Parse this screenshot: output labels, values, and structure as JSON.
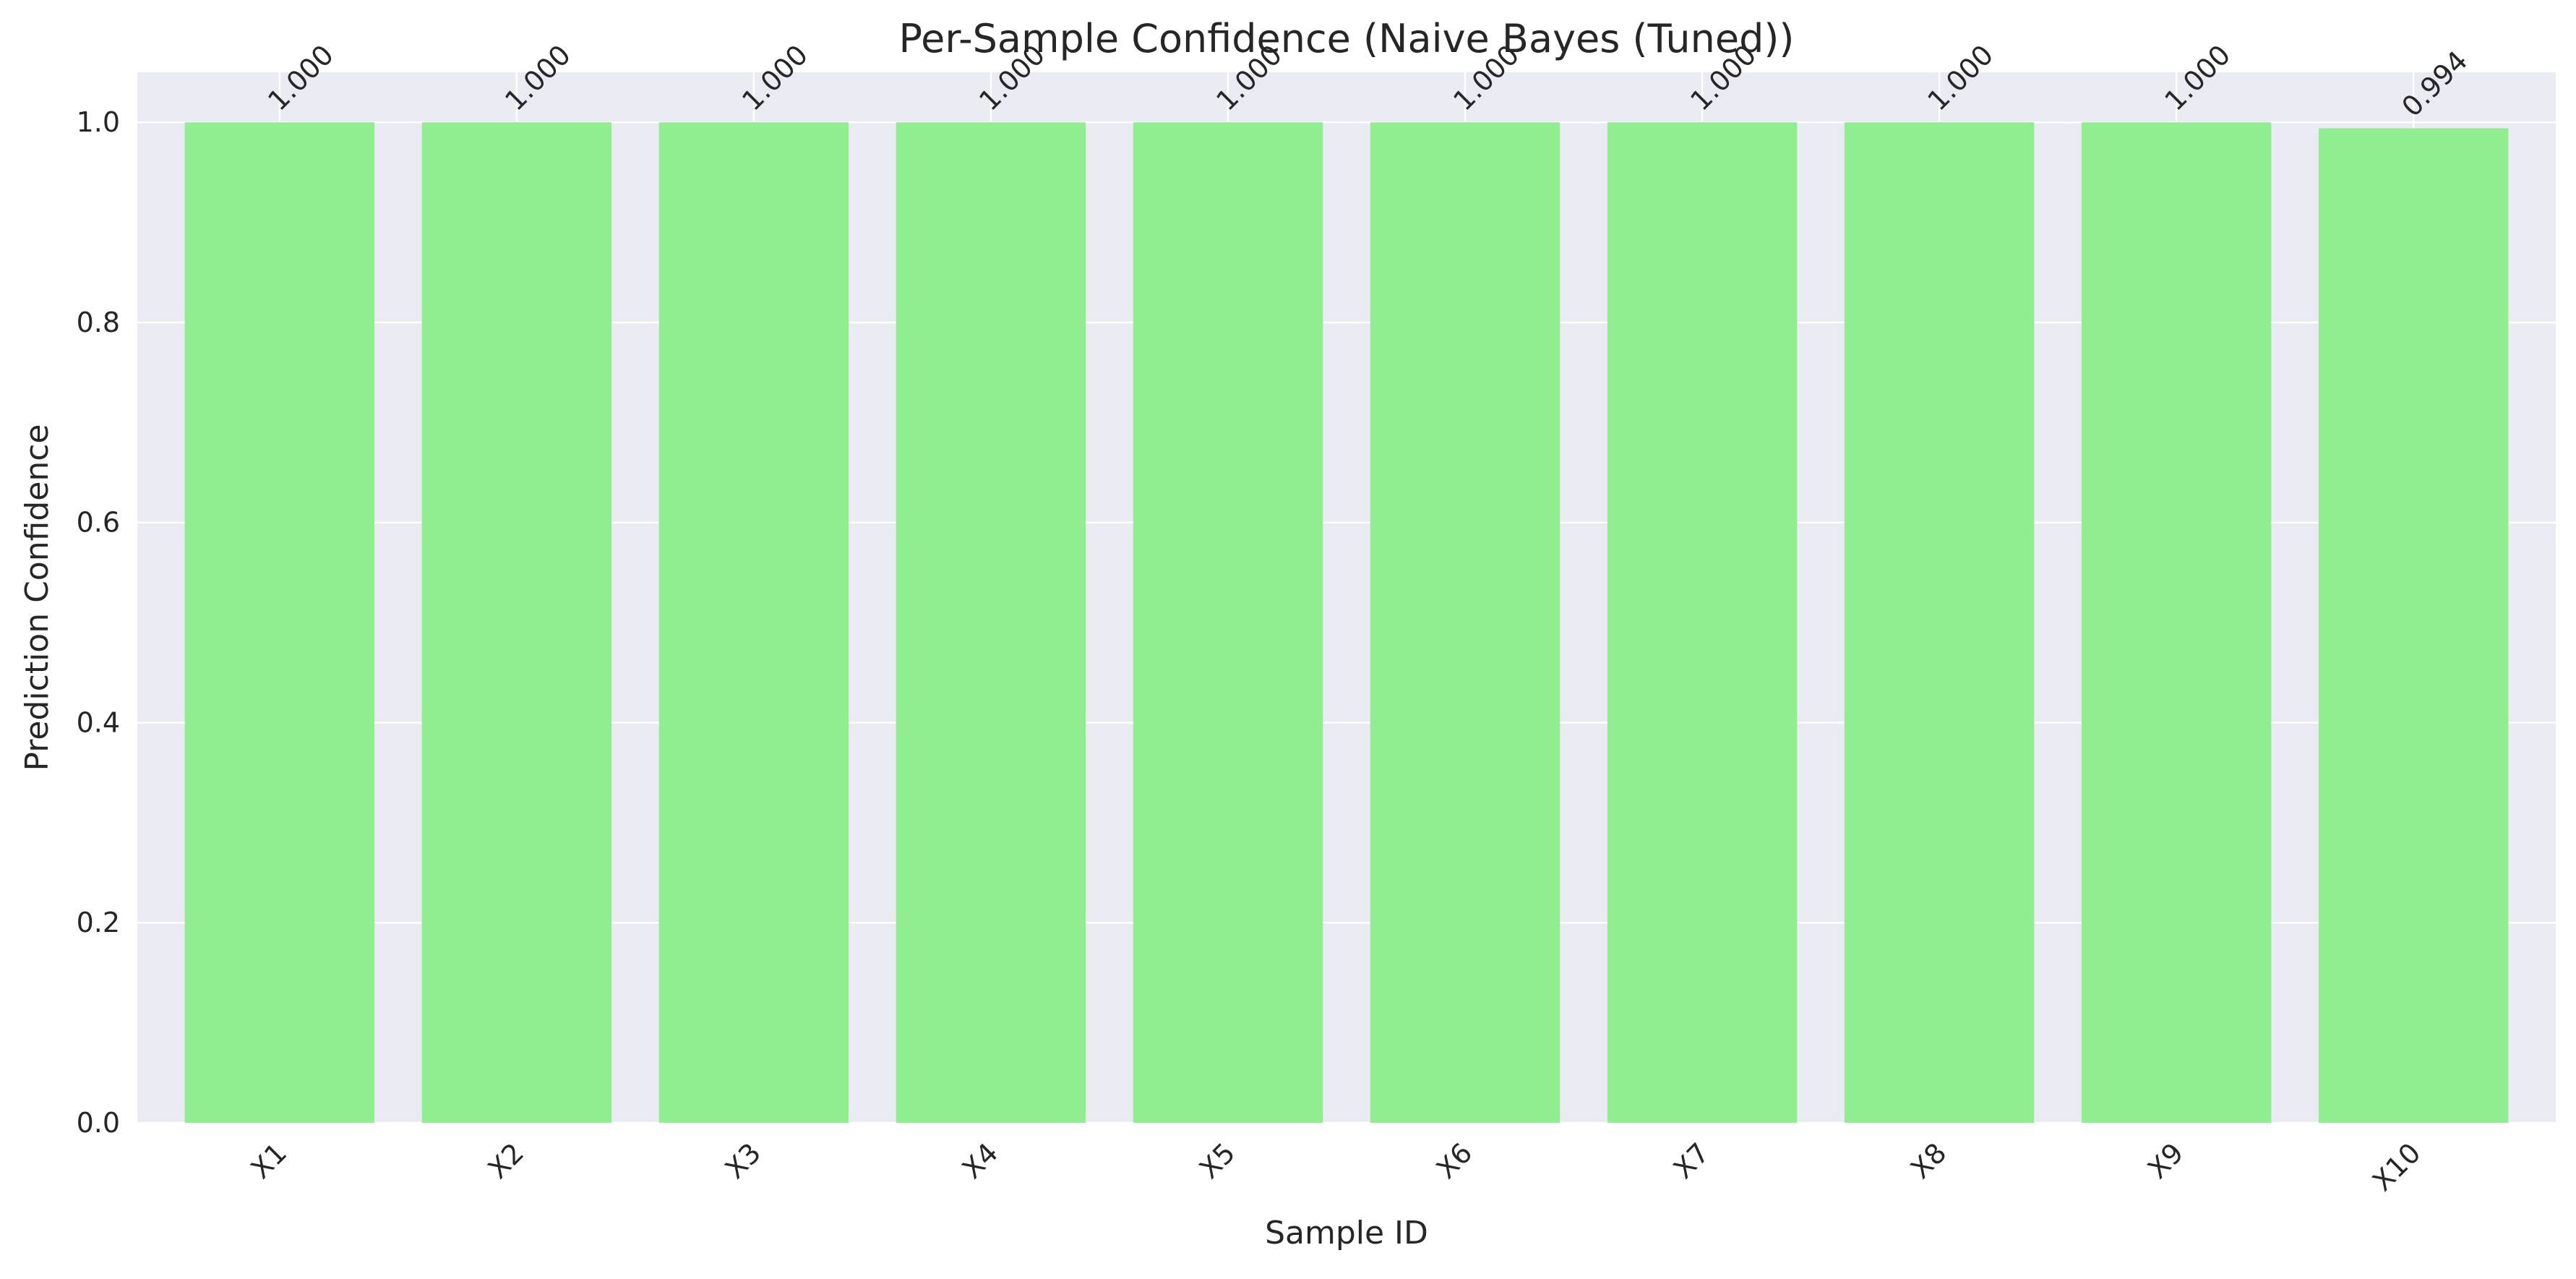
{
  "chart_data": {
    "type": "bar",
    "title": "Per-Sample Confidence (Naive Bayes (Tuned))",
    "xlabel": "Sample ID",
    "ylabel": "Prediction Confidence",
    "categories": [
      "X1",
      "X2",
      "X3",
      "X4",
      "X5",
      "X6",
      "X7",
      "X8",
      "X9",
      "X10"
    ],
    "values": [
      1.0,
      1.0,
      1.0,
      1.0,
      1.0,
      1.0,
      1.0,
      1.0,
      1.0,
      0.994
    ],
    "value_labels": [
      "1.000",
      "1.000",
      "1.000",
      "1.000",
      "1.000",
      "1.000",
      "1.000",
      "1.000",
      "1.000",
      "0.994"
    ],
    "ylim": [
      0,
      1.05
    ],
    "yticks": [
      0.0,
      0.2,
      0.4,
      0.6,
      0.8,
      1.0
    ],
    "ytick_labels": [
      "0.0",
      "0.2",
      "0.4",
      "0.6",
      "0.8",
      "1.0"
    ],
    "grid": true,
    "legend": "none",
    "colors": {
      "bar": "#90ee90",
      "plot_background": "#eaeaf2",
      "grid": "#ffffff",
      "text": "#262626"
    }
  }
}
